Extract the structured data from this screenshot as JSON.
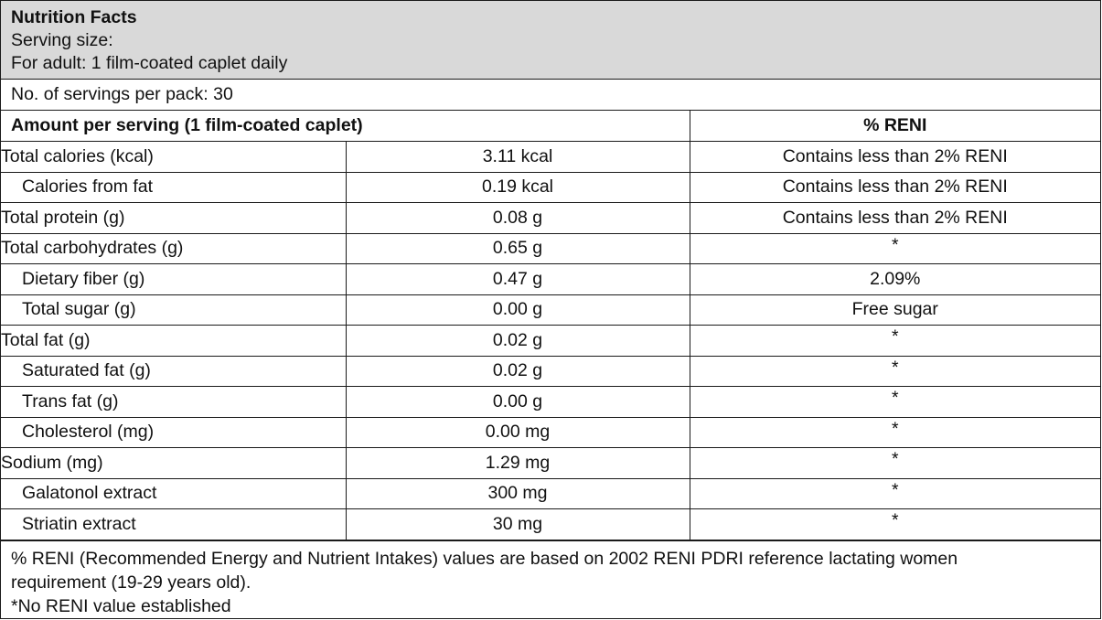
{
  "header": {
    "title": "Nutrition Facts",
    "serving_size_label": "Serving size:",
    "serving_size_detail": "For adult: 1 film-coated caplet daily"
  },
  "servings_per_pack": "No. of servings per pack: 30",
  "table": {
    "header_left": "Amount per serving (1 film-coated caplet)",
    "header_right": "% RENI",
    "rows": [
      {
        "name": "Total calories (kcal)",
        "amount": "3.11 kcal",
        "reni": "Contains less than 2% RENI"
      },
      {
        "name": "Calories from fat",
        "amount": "0.19 kcal",
        "reni": "Contains less than 2% RENI"
      },
      {
        "name": "Total protein (g)",
        "amount": "0.08 g",
        "reni": "Contains less than 2% RENI"
      },
      {
        "name": "Total carbohydrates (g)",
        "amount": "0.65 g",
        "reni": "*"
      },
      {
        "name": "Dietary fiber (g)",
        "amount": "0.47 g",
        "reni": "2.09%"
      },
      {
        "name": "Total sugar (g)",
        "amount": "0.00 g",
        "reni": "Free sugar"
      },
      {
        "name": "Total fat (g)",
        "amount": "0.02 g",
        "reni": "*"
      },
      {
        "name": "Saturated fat (g)",
        "amount": "0.02 g",
        "reni": "*"
      },
      {
        "name": "Trans fat (g)",
        "amount": "0.00 g",
        "reni": "*"
      },
      {
        "name": "Cholesterol (mg)",
        "amount": "0.00 mg",
        "reni": "*"
      },
      {
        "name": "Sodium (mg)",
        "amount": "1.29 mg",
        "reni": "*"
      },
      {
        "name": "Galatonol extract",
        "amount": "300 mg",
        "reni": "*"
      },
      {
        "name": "Striatin extract",
        "amount": "30 mg",
        "reni": "*"
      }
    ]
  },
  "footnote": {
    "line1": "% RENI (Recommended Energy and Nutrient Intakes) values are based on 2002 RENI PDRI reference lactating women",
    "line2": "requirement (19-29 years old).",
    "line3": "*No RENI value established"
  },
  "colors": {
    "header_background": "#d9d9d9",
    "border": "#1a1a1a"
  }
}
